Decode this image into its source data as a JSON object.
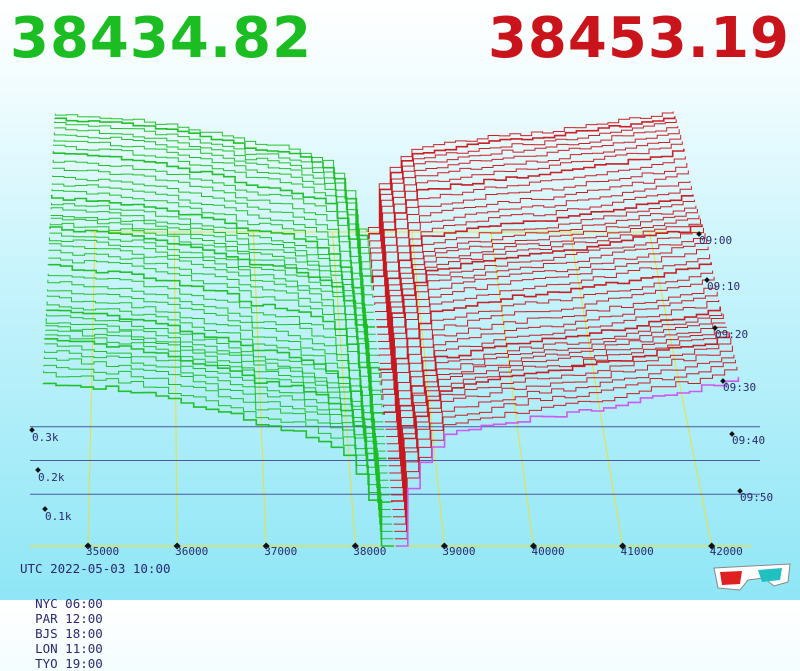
{
  "header": {
    "bid_price": "38434.82",
    "ask_price": "38453.19",
    "bid_color": "#1bbd22",
    "ask_color": "#c8141a"
  },
  "footer": {
    "utc": "UTC 2022-05-03 10:00",
    "zones": [
      "NYC 06:00",
      "PAR 12:00",
      "BJS 18:00",
      "LON 11:00",
      "TYO 19:00"
    ]
  },
  "chart_data": {
    "type": "area",
    "style": "3d-waterfall-depth",
    "mid_price": 38443,
    "x_ticks": [
      35000,
      36000,
      37000,
      38000,
      39000,
      40000,
      41000,
      42000
    ],
    "x_tick_labels": [
      "35000",
      "36000",
      "37000",
      "38000",
      "39000",
      "40000",
      "41000",
      "42000"
    ],
    "volume_ticks": [
      0.1,
      0.2,
      0.3
    ],
    "volume_tick_labels": [
      "0.1k",
      "0.2k",
      "0.3k"
    ],
    "time_labels": [
      "09:00",
      "09:10",
      "09:20",
      "09:30",
      "09:40",
      "09:50"
    ],
    "bid_color": "#1bbd22",
    "ask_color": "#c8141a",
    "latest_snapshot_color": "#d050f0",
    "grid_color": "#e8e040",
    "bid_depth_profile": [
      [
        34500,
        0.36
      ],
      [
        35000,
        0.35
      ],
      [
        35500,
        0.34
      ],
      [
        36000,
        0.32
      ],
      [
        36400,
        0.3
      ],
      [
        36800,
        0.28
      ],
      [
        37000,
        0.26
      ],
      [
        37400,
        0.25
      ],
      [
        37800,
        0.22
      ],
      [
        38000,
        0.2
      ],
      [
        38200,
        0.14
      ],
      [
        38350,
        0.06
      ],
      [
        38434,
        0.0
      ]
    ],
    "ask_depth_profile": [
      [
        38453,
        0.0
      ],
      [
        38500,
        0.06
      ],
      [
        38600,
        0.13
      ],
      [
        38800,
        0.2
      ],
      [
        39000,
        0.24
      ],
      [
        39500,
        0.26
      ],
      [
        40000,
        0.28
      ],
      [
        40500,
        0.29
      ],
      [
        41000,
        0.31
      ],
      [
        41500,
        0.33
      ],
      [
        42000,
        0.35
      ],
      [
        42300,
        0.37
      ]
    ]
  }
}
